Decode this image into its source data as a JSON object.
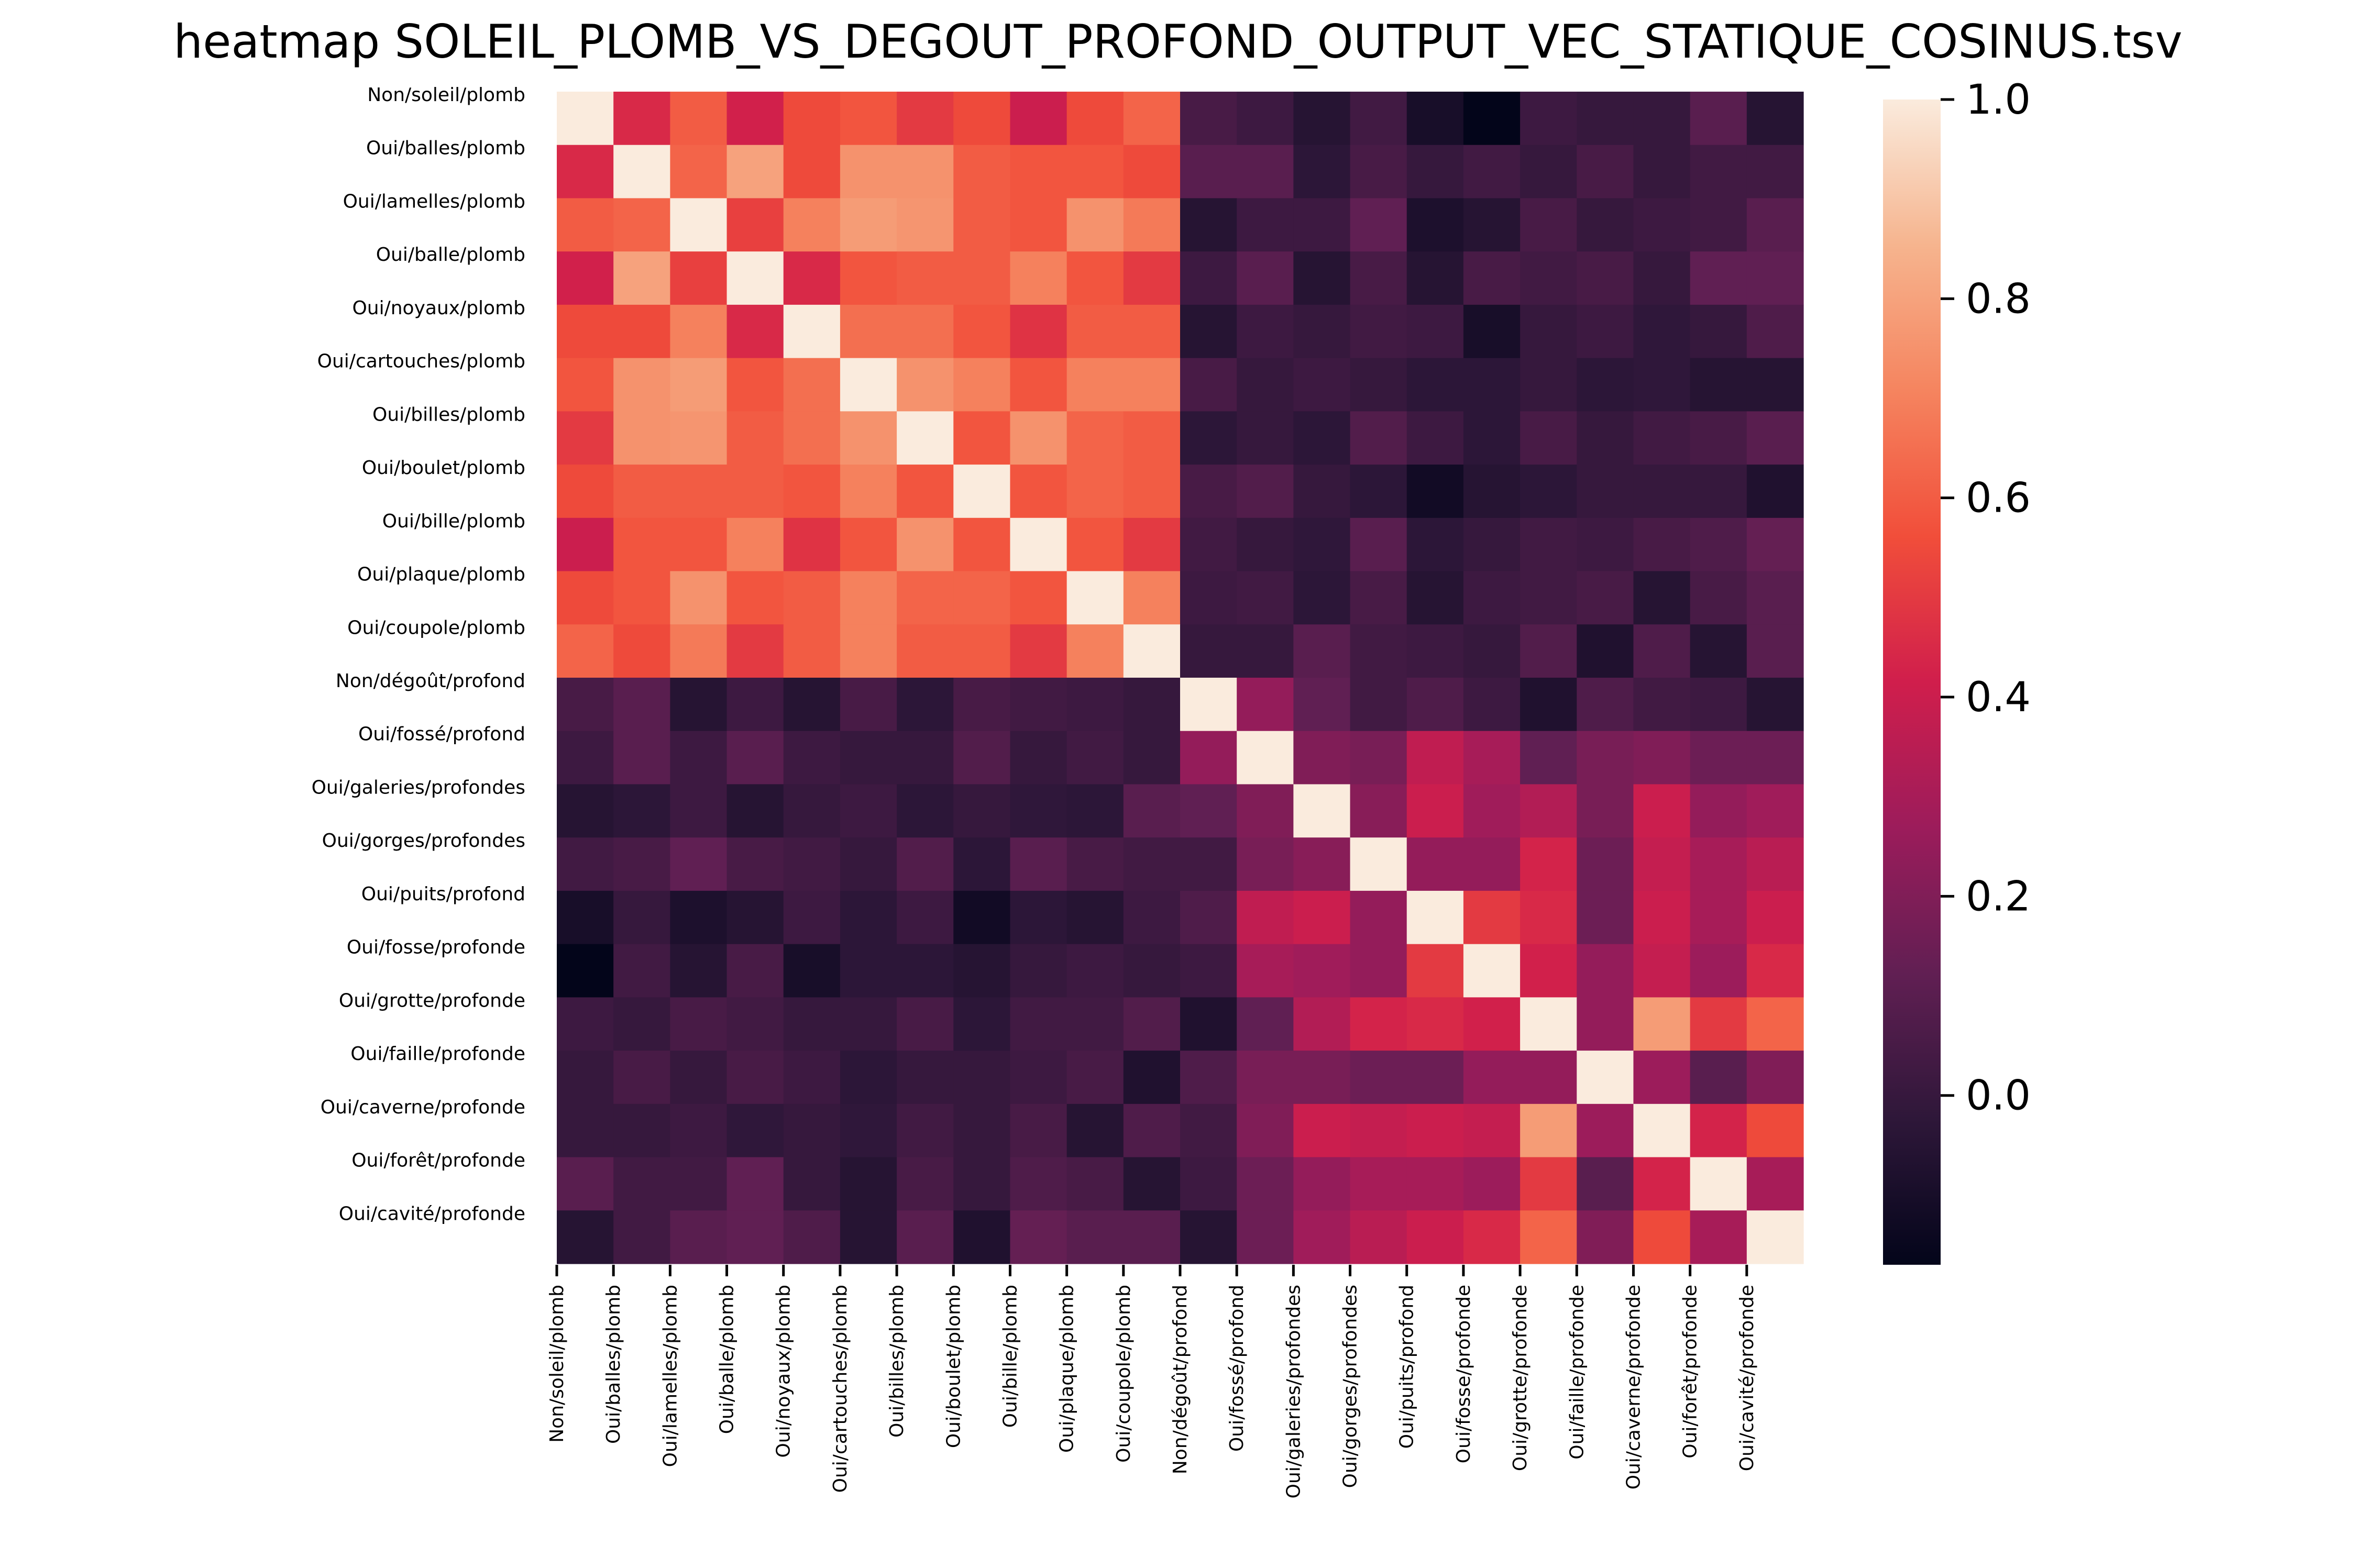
{
  "chart_data": {
    "type": "heatmap",
    "title": "heatmap SOLEIL_PLOMB_VS_DEGOUT_PROFOND_OUTPUT_VEC_STATIQUE_COSINUS.tsv",
    "labels": [
      "Non/soleil/plomb",
      "Oui/balles/plomb",
      "Oui/lamelles/plomb",
      "Oui/balle/plomb",
      "Oui/noyaux/plomb",
      "Oui/cartouches/plomb",
      "Oui/billes/plomb",
      "Oui/boulet/plomb",
      "Oui/bille/plomb",
      "Oui/plaque/plomb",
      "Oui/coupole/plomb",
      "Non/dégoût/profond",
      "Oui/fossé/profond",
      "Oui/galeries/profondes",
      "Oui/gorges/profondes",
      "Oui/puits/profond",
      "Oui/fosse/profonde",
      "Oui/grotte/profonde",
      "Oui/faille/profonde",
      "Oui/caverne/profonde",
      "Oui/forêt/profonde",
      "Oui/cavité/profonde"
    ],
    "matrix": [
      [
        1.0,
        0.45,
        0.6,
        0.42,
        0.55,
        0.58,
        0.5,
        0.55,
        0.4,
        0.55,
        0.62,
        0.05,
        0.02,
        -0.05,
        0.03,
        -0.1,
        -0.17,
        0.02,
        0.0,
        0.0,
        0.1,
        -0.05
      ],
      [
        0.45,
        1.0,
        0.62,
        0.8,
        0.55,
        0.75,
        0.75,
        0.6,
        0.58,
        0.58,
        0.55,
        0.1,
        0.1,
        -0.03,
        0.05,
        0.0,
        0.03,
        0.0,
        0.05,
        0.0,
        0.03,
        0.03
      ],
      [
        0.6,
        0.62,
        1.0,
        0.52,
        0.7,
        0.78,
        0.76,
        0.6,
        0.58,
        0.75,
        0.68,
        -0.05,
        0.02,
        0.02,
        0.12,
        -0.08,
        -0.05,
        0.05,
        0.0,
        0.02,
        0.03,
        0.1
      ],
      [
        0.42,
        0.8,
        0.52,
        1.0,
        0.45,
        0.58,
        0.6,
        0.6,
        0.7,
        0.58,
        0.5,
        0.02,
        0.1,
        -0.05,
        0.05,
        -0.05,
        0.05,
        0.03,
        0.05,
        0.0,
        0.12,
        0.12
      ],
      [
        0.55,
        0.55,
        0.7,
        0.45,
        1.0,
        0.65,
        0.65,
        0.58,
        0.48,
        0.6,
        0.6,
        -0.05,
        0.02,
        0.0,
        0.03,
        0.02,
        -0.1,
        0.0,
        0.02,
        -0.02,
        0.0,
        0.07
      ],
      [
        0.58,
        0.75,
        0.78,
        0.58,
        0.65,
        1.0,
        0.75,
        0.7,
        0.58,
        0.7,
        0.7,
        0.05,
        0.0,
        0.02,
        0.0,
        -0.03,
        -0.03,
        0.0,
        -0.03,
        -0.02,
        -0.05,
        -0.05
      ],
      [
        0.5,
        0.75,
        0.76,
        0.6,
        0.65,
        0.75,
        1.0,
        0.58,
        0.75,
        0.62,
        0.6,
        -0.03,
        0.0,
        -0.03,
        0.08,
        0.02,
        -0.03,
        0.05,
        0.0,
        0.03,
        0.05,
        0.1
      ],
      [
        0.55,
        0.6,
        0.6,
        0.6,
        0.58,
        0.7,
        0.58,
        1.0,
        0.58,
        0.62,
        0.6,
        0.05,
        0.08,
        0.0,
        -0.03,
        -0.12,
        -0.05,
        -0.03,
        0.0,
        0.0,
        0.0,
        -0.07
      ],
      [
        0.4,
        0.58,
        0.58,
        0.7,
        0.48,
        0.58,
        0.75,
        0.58,
        1.0,
        0.58,
        0.5,
        0.03,
        0.0,
        -0.02,
        0.1,
        -0.03,
        0.0,
        0.03,
        0.02,
        0.05,
        0.07,
        0.13
      ],
      [
        0.55,
        0.58,
        0.75,
        0.58,
        0.6,
        0.7,
        0.62,
        0.62,
        0.58,
        1.0,
        0.7,
        0.02,
        0.03,
        -0.03,
        0.05,
        -0.05,
        0.02,
        0.03,
        0.05,
        -0.05,
        0.05,
        0.1
      ],
      [
        0.62,
        0.55,
        0.68,
        0.5,
        0.6,
        0.7,
        0.6,
        0.6,
        0.5,
        0.7,
        1.0,
        0.0,
        0.0,
        0.1,
        0.03,
        0.02,
        0.0,
        0.08,
        -0.07,
        0.07,
        -0.05,
        0.1
      ],
      [
        0.05,
        0.1,
        -0.05,
        0.02,
        -0.05,
        0.05,
        -0.03,
        0.05,
        0.03,
        0.02,
        0.0,
        1.0,
        0.25,
        0.12,
        0.03,
        0.07,
        0.02,
        -0.07,
        0.07,
        0.03,
        0.02,
        -0.05
      ],
      [
        0.02,
        0.1,
        0.02,
        0.1,
        0.02,
        0.0,
        0.0,
        0.08,
        0.0,
        0.03,
        0.0,
        0.25,
        1.0,
        0.2,
        0.18,
        0.37,
        0.3,
        0.12,
        0.18,
        0.2,
        0.15,
        0.15
      ],
      [
        -0.05,
        -0.03,
        0.02,
        -0.05,
        0.0,
        0.02,
        -0.03,
        0.0,
        -0.02,
        -0.03,
        0.1,
        0.12,
        0.2,
        1.0,
        0.22,
        0.4,
        0.28,
        0.33,
        0.18,
        0.4,
        0.25,
        0.28
      ],
      [
        0.03,
        0.05,
        0.12,
        0.05,
        0.03,
        0.0,
        0.08,
        -0.03,
        0.1,
        0.05,
        0.03,
        0.03,
        0.18,
        0.22,
        1.0,
        0.25,
        0.25,
        0.43,
        0.15,
        0.38,
        0.3,
        0.35
      ],
      [
        -0.1,
        0.0,
        -0.08,
        -0.05,
        0.02,
        -0.03,
        0.02,
        -0.12,
        -0.03,
        -0.05,
        0.02,
        0.07,
        0.37,
        0.4,
        0.25,
        1.0,
        0.5,
        0.45,
        0.15,
        0.4,
        0.3,
        0.4
      ],
      [
        -0.17,
        0.03,
        -0.05,
        0.05,
        -0.1,
        -0.03,
        -0.03,
        -0.05,
        0.0,
        0.02,
        0.0,
        0.02,
        0.3,
        0.28,
        0.25,
        0.5,
        1.0,
        0.42,
        0.25,
        0.38,
        0.27,
        0.45
      ],
      [
        0.02,
        0.0,
        0.05,
        0.03,
        0.0,
        0.0,
        0.05,
        -0.03,
        0.03,
        0.03,
        0.08,
        -0.07,
        0.12,
        0.33,
        0.43,
        0.45,
        0.42,
        1.0,
        0.25,
        0.78,
        0.5,
        0.62
      ],
      [
        0.0,
        0.05,
        0.0,
        0.05,
        0.02,
        -0.03,
        0.0,
        0.0,
        0.02,
        0.05,
        -0.07,
        0.07,
        0.18,
        0.18,
        0.15,
        0.15,
        0.25,
        0.25,
        1.0,
        0.27,
        0.1,
        0.2
      ],
      [
        0.0,
        0.0,
        0.02,
        -0.02,
        0.0,
        -0.02,
        0.03,
        0.0,
        0.05,
        -0.05,
        0.07,
        0.03,
        0.2,
        0.4,
        0.38,
        0.4,
        0.38,
        0.78,
        0.27,
        1.0,
        0.43,
        0.55
      ],
      [
        0.1,
        0.03,
        0.03,
        0.12,
        0.0,
        -0.05,
        0.05,
        0.0,
        0.07,
        0.05,
        -0.05,
        0.02,
        0.15,
        0.25,
        0.3,
        0.3,
        0.27,
        0.5,
        0.1,
        0.43,
        1.0,
        0.3
      ],
      [
        -0.05,
        0.03,
        0.1,
        0.12,
        0.07,
        -0.05,
        0.1,
        -0.07,
        0.13,
        0.1,
        0.1,
        -0.05,
        0.15,
        0.28,
        0.35,
        0.4,
        0.45,
        0.62,
        0.2,
        0.55,
        0.3,
        1.0
      ]
    ],
    "colorbar": {
      "min": -0.17,
      "max": 1.0,
      "ticks": [
        "0.0",
        "0.2",
        "0.4",
        "0.6",
        "0.8",
        "1.0"
      ],
      "colormap": [
        "#03051a",
        "#2e1739",
        "#611f53",
        "#9c1c5b",
        "#d01e4c",
        "#f14e3a",
        "#f5845f",
        "#f6b48e",
        "#faebdd"
      ]
    }
  }
}
